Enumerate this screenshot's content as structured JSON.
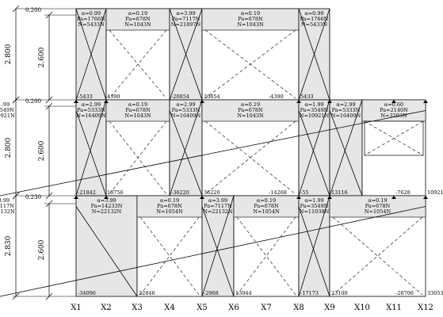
{
  "left_dims": {
    "outer": [
      "2.800",
      "2.800",
      "2.830"
    ],
    "inner": [
      "2.600",
      "2.600",
      "2.600"
    ],
    "beam": [
      "0.200",
      "0.200",
      "0.230"
    ]
  },
  "axes": [
    "X1",
    "X2",
    "X3",
    "X4",
    "X5",
    "X6",
    "X7",
    "X8",
    "X9",
    "X10",
    "X11",
    "X12"
  ],
  "floors": [
    {
      "id": "top",
      "panels": [
        {
          "alpha": "α=0.99",
          "pa": "Pa=1766N",
          "n": "N=5433N"
        },
        {
          "alpha": "α=0.19",
          "pa": "Pa=678N",
          "n": "N=1043N"
        },
        {
          "alpha": "α=3.99",
          "pa": "Pa=7117N",
          "n": "N=21897N"
        },
        {
          "alpha": "α=0.19",
          "pa": "Pa=678N",
          "n": "N=1043N"
        },
        {
          "alpha": "α=0.99",
          "pa": "Pa=1766N",
          "n": "N=5433N"
        }
      ],
      "bottom_values": [
        "-5433",
        "4390",
        "-20854",
        "20854",
        "-4390",
        "5433"
      ]
    },
    {
      "id": "middle",
      "panels": [
        {
          "alpha": "α=2.99",
          "pa": "Pa=5333N",
          "n": "N=16409N"
        },
        {
          "alpha": "α=0.19",
          "pa": "Pa=678N",
          "n": "N=1043N"
        },
        {
          "alpha": "α=2.99",
          "pa": "Pa=5333N",
          "n": "N=16409N"
        },
        {
          "alpha": "α=0.19",
          "pa": "Pa=678N",
          "n": "N=1043N"
        },
        {
          "alpha": "α=1.99",
          "pa": "Pa=3549N",
          "n": "N=10921N"
        },
        {
          "alpha": "α=2.99",
          "pa": "Pa=5333N",
          "n": "N=16409N"
        },
        {
          "alpha": "α=0.60",
          "pa": "Pa=2140N",
          "n": "N=3293N"
        },
        {
          "alpha": "α=1.99",
          "pa": "Pa=3549N",
          "n": "N=10921N"
        }
      ],
      "bottom_values": [
        "-21842",
        "19756",
        "-36220",
        "36220",
        "-14268",
        "-55",
        "13116",
        "-7628",
        "10921"
      ]
    },
    {
      "id": "ground",
      "panels": [
        {
          "alpha": "α=3.99",
          "pa": "Pa=14233N",
          "n": "N=22132N"
        },
        {
          "alpha": "α=0.19",
          "pa": "Pa=678N",
          "n": "N=1054N"
        },
        {
          "alpha": "α=3.99",
          "pa": "Pa=7117N",
          "n": "N=22132N"
        },
        {
          "alpha": "α=0.19",
          "pa": "Pa=678N",
          "n": "N=1054N"
        },
        {
          "alpha": "α=1.99",
          "pa": "Pa=3549N",
          "n": "N=11038N"
        },
        {
          "alpha": "α=0.19",
          "pa": "Pa=678N",
          "n": "N=1054N"
        },
        {
          "alpha": "α=3.99",
          "pa": "Pa=7117N",
          "n": "N=22132N"
        }
      ],
      "bottom_values": [
        "-34096",
        "22846",
        "-2968",
        "13944",
        "-17173",
        "23100",
        "-28706",
        "33053"
      ]
    }
  ]
}
